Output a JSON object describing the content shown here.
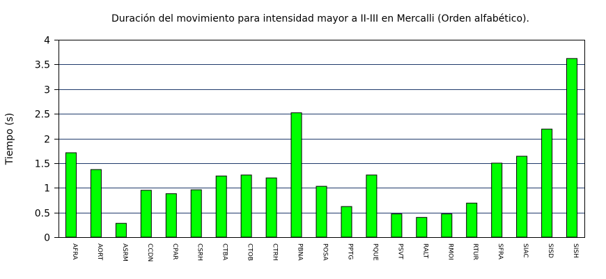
{
  "chart_data": {
    "type": "bar",
    "title": "Duración del movimiento para intensidad mayor a II-III en Mercalli (Orden alfabético).",
    "xlabel": "",
    "ylabel": "Tiempo (s)",
    "ylim": [
      0,
      4
    ],
    "yticks": [
      "0",
      "0.5",
      "1",
      "1.5",
      "2",
      "2.5",
      "3",
      "3.5",
      "4"
    ],
    "grid": "horizontal",
    "bar_color": "#00ff00",
    "categories": [
      "AFRA",
      "AORT",
      "ASRM",
      "CCDN",
      "CPAR",
      "CSRH",
      "CTBA",
      "CTOB",
      "CTRH",
      "PBNA",
      "POSA",
      "PPTG",
      "PQUE",
      "PSVT",
      "RALT",
      "RMOI",
      "RTUR",
      "SFRA",
      "SIAC",
      "SISD",
      "SISH"
    ],
    "values": [
      1.71,
      1.37,
      0.28,
      0.95,
      0.88,
      0.96,
      1.24,
      1.26,
      1.2,
      2.52,
      1.03,
      0.62,
      1.26,
      0.47,
      0.4,
      0.47,
      0.69,
      1.5,
      1.64,
      2.19,
      3.62
    ]
  }
}
